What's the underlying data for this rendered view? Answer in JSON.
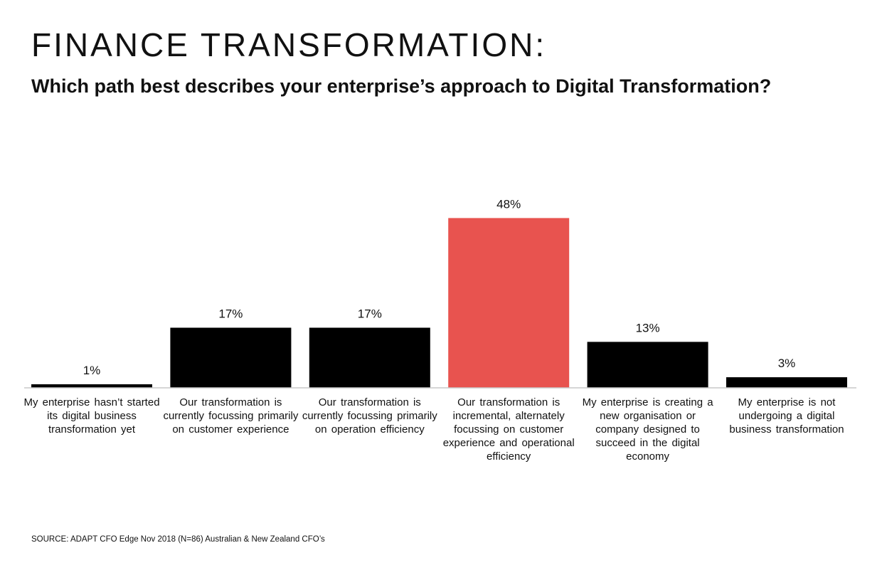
{
  "header": {
    "title": "FINANCE TRANSFORMATION:",
    "subtitle": "Which path best describes your enterprise’s approach to Digital Transformation?"
  },
  "chart_data": {
    "type": "bar",
    "categories": [
      "My enterprise hasn’t started its digital business transformation yet",
      "Our transformation is currently focussing primarily on customer experience",
      "Our transformation is currently focussing primarily on operation efficiency",
      "Our transformation is incremental, alternately focussing on customer experience and operational efficiency",
      "My enterprise is creating a new organisation or company designed to succeed in the digital economy",
      "My enterprise is not undergoing a digital business transformation"
    ],
    "values": [
      1,
      17,
      17,
      48,
      13,
      3
    ],
    "value_labels": [
      "1%",
      "17%",
      "17%",
      "48%",
      "13%",
      "3%"
    ],
    "unit": "%",
    "ylim": [
      0,
      55
    ],
    "colors": [
      "#000000",
      "#000000",
      "#000000",
      "#e8534f",
      "#000000",
      "#000000"
    ],
    "highlight_index": 3,
    "grid": false,
    "axis_color": "#c8c8c8"
  },
  "footer": {
    "source": "SOURCE: ADAPT CFO Edge Nov 2018 (N=86) Australian & New Zealand CFO’s"
  }
}
